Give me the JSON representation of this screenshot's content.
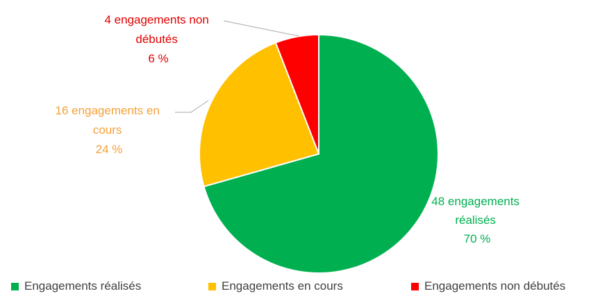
{
  "chart_data": {
    "type": "pie",
    "slices": [
      {
        "legend": "Engagements réalisés",
        "count": 48,
        "percent": 70,
        "label_line1": "48 engagements",
        "label_line2": "réalisés",
        "label_line3": "70 %",
        "color": "#00b050"
      },
      {
        "legend": "Engagements en cours",
        "count": 16,
        "percent": 24,
        "label_line1": "16 engagements en",
        "label_line2": "cours",
        "label_line3": "24 %",
        "color": "#ffc000"
      },
      {
        "legend": "Engagements non débutés",
        "count": 4,
        "percent": 6,
        "label_line1": "4 engagements non",
        "label_line2": "débutés",
        "label_line3": "6 %",
        "color": "#ff0000"
      }
    ],
    "label_colors": [
      "#00b050",
      "#f4a03a",
      "#e00000"
    ],
    "start_angle": "12 o'clock",
    "direction": "clockwise",
    "legend_position": "bottom"
  }
}
